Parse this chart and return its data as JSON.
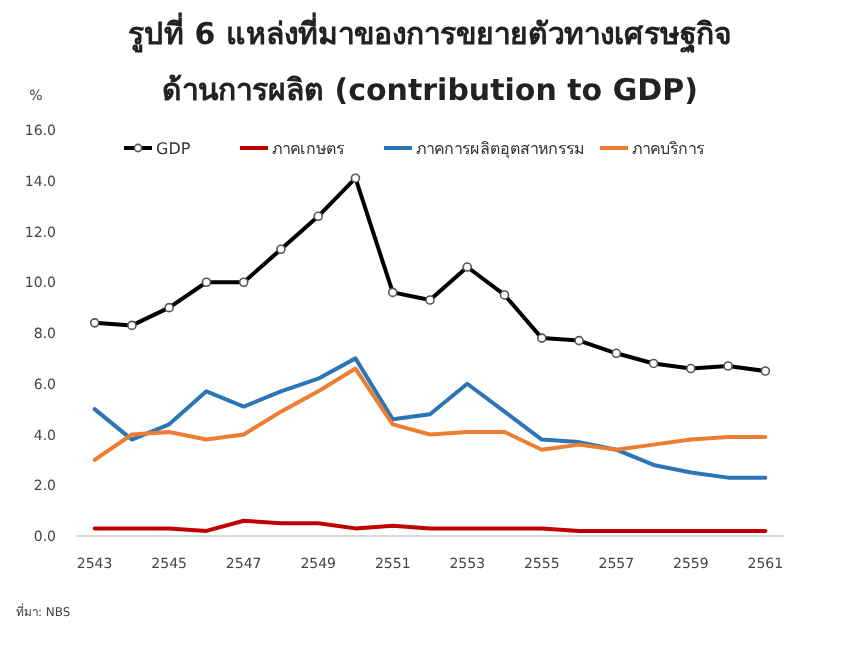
{
  "chart_data": {
    "type": "line",
    "title": "รูปที่ 6 แหล่งที่มาของการขยายตัวทางเศรษฐกิจ",
    "subtitle": "ด้านการผลิต (contribution to GDP)",
    "ylabel": "%",
    "categories": [
      "2543",
      null,
      "2545",
      null,
      "2547",
      null,
      "2549",
      null,
      "2551",
      null,
      "2553",
      null,
      "2555",
      null,
      "2557",
      null,
      "2559",
      null,
      "2561"
    ],
    "series": [
      {
        "name": "GDP",
        "color": "#000000",
        "marker": "circle",
        "values": [
          8.4,
          8.3,
          9.0,
          10.0,
          10.0,
          11.3,
          12.6,
          14.1,
          9.6,
          9.3,
          10.6,
          9.5,
          7.8,
          7.7,
          7.2,
          6.8,
          6.6,
          6.7,
          6.5
        ]
      },
      {
        "name": "ภาคเกษตร",
        "color": "#c00000",
        "marker": "none",
        "values": [
          0.3,
          0.3,
          0.3,
          0.2,
          0.6,
          0.5,
          0.5,
          0.3,
          0.4,
          0.3,
          0.3,
          0.3,
          0.3,
          0.2,
          0.2,
          0.2,
          0.2,
          0.2,
          0.2
        ]
      },
      {
        "name": "ภาคการผลิตอุตสาหกรรม",
        "color": "#2e75b6",
        "marker": "none",
        "values": [
          5.0,
          3.8,
          4.4,
          5.7,
          5.1,
          5.7,
          6.2,
          7.0,
          4.6,
          4.8,
          6.0,
          4.9,
          3.8,
          3.7,
          3.4,
          2.8,
          2.5,
          2.3,
          2.3
        ]
      },
      {
        "name": "ภาคบริการ",
        "color": "#ed7d31",
        "marker": "none",
        "values": [
          3.0,
          4.0,
          4.1,
          3.8,
          4.0,
          4.9,
          5.7,
          6.6,
          4.4,
          4.0,
          4.1,
          4.1,
          3.4,
          3.6,
          3.4,
          3.6,
          3.8,
          3.9,
          3.9
        ]
      }
    ],
    "ylim": [
      0,
      16
    ],
    "yticks": [
      {
        "value": 0,
        "label": "0.0"
      },
      {
        "value": 2,
        "label": "2.0"
      },
      {
        "value": 4,
        "label": "4.0"
      },
      {
        "value": 6,
        "label": "6.0"
      },
      {
        "value": 8,
        "label": "8.0"
      },
      {
        "value": 10,
        "label": "10.0"
      },
      {
        "value": 12,
        "label": "12.0"
      },
      {
        "value": 14,
        "label": "14.0"
      },
      {
        "value": 16,
        "label": "16.0"
      }
    ],
    "grid": false,
    "legend": "top",
    "line_style": "solid",
    "annotations": [
      "ที่มา: NBS"
    ]
  }
}
